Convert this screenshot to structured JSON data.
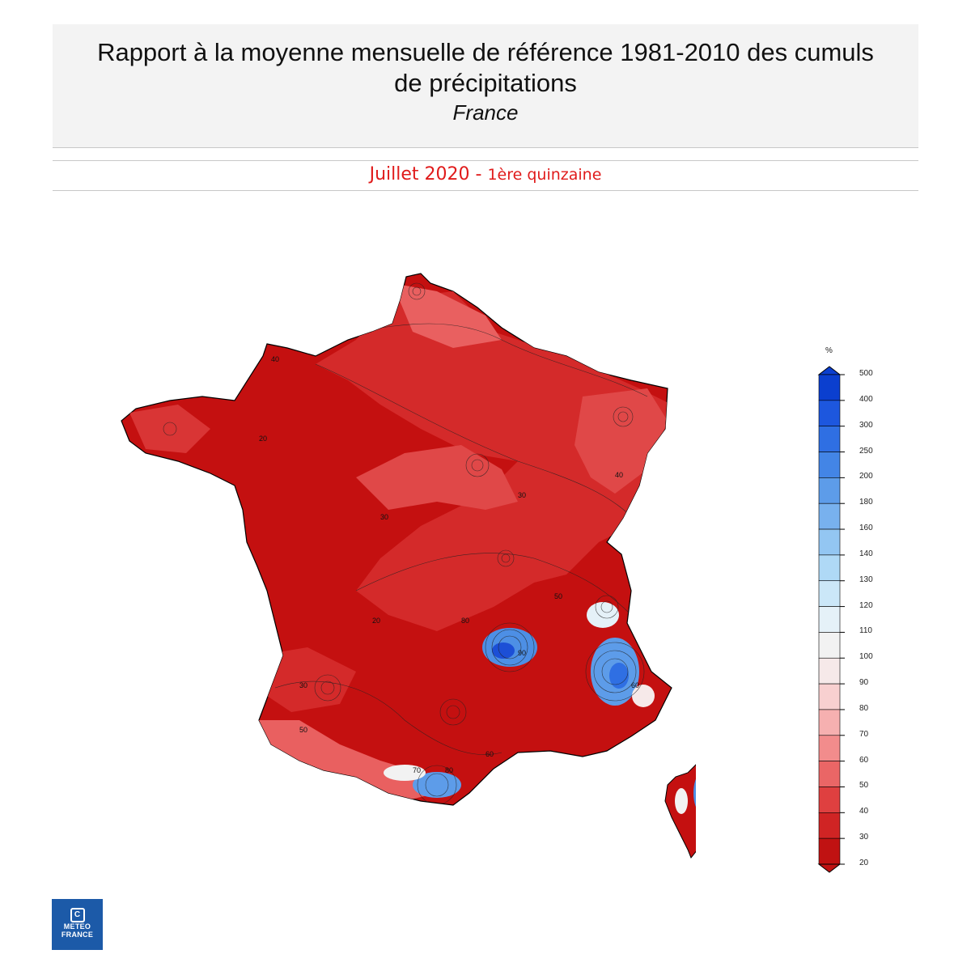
{
  "header": {
    "title_line1": "Rapport à la moyenne mensuelle de référence 1981-2010 des cumuls",
    "title_line2": "de précipitations",
    "subtitle": "France"
  },
  "period": {
    "month": "Juillet 2020",
    "separator": "-",
    "fortnight": "1ère quinzaine"
  },
  "legend": {
    "unit": "%",
    "levels": [
      "500",
      "400",
      "300",
      "250",
      "200",
      "180",
      "160",
      "140",
      "130",
      "120",
      "110",
      "100",
      "90",
      "80",
      "70",
      "60",
      "50",
      "40",
      "30",
      "20"
    ],
    "colors": [
      "#0b3fcf",
      "#1d57de",
      "#2f6fe3",
      "#4385e6",
      "#5d9ce9",
      "#78b1ee",
      "#93c6f2",
      "#afd9f6",
      "#cbe7f8",
      "#e5f1f8",
      "#f2f2f2",
      "#f6e9e9",
      "#f8d0d0",
      "#f6b0b0",
      "#f28c8c",
      "#ea6666",
      "#df4040",
      "#d02424",
      "#c01212"
    ]
  },
  "map": {
    "contour_labels": [
      "40",
      "20",
      "30",
      "60",
      "50",
      "70",
      "80",
      "90",
      "30",
      "40",
      "20",
      "50",
      "30",
      "60",
      "80"
    ]
  },
  "logo": {
    "line1": "METEO",
    "line2": "FRANCE"
  }
}
